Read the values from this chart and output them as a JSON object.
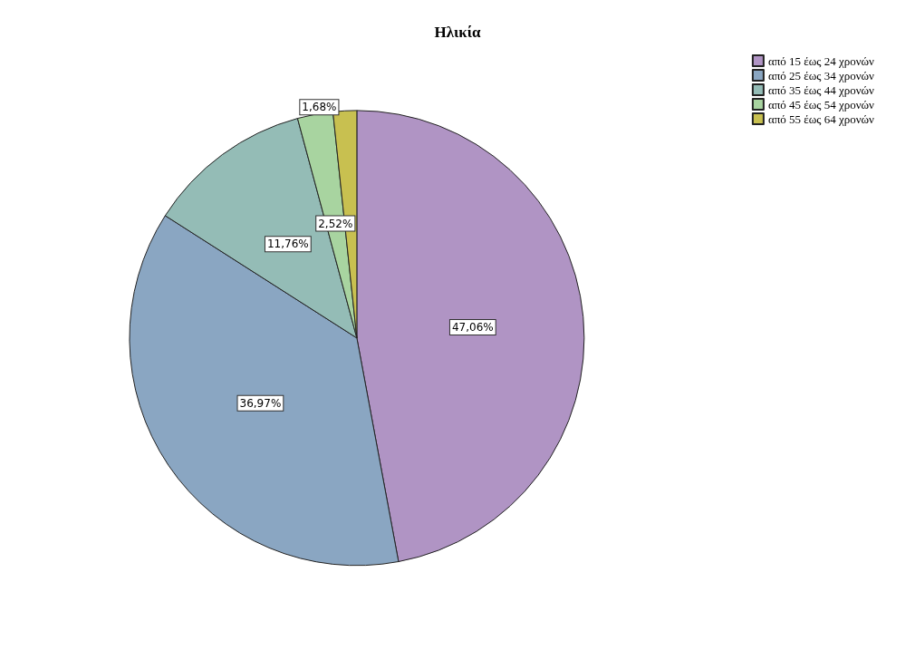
{
  "chart_data": {
    "type": "pie",
    "title": "Ηλικία",
    "categories": [
      "από 15 έως 24 χρονών",
      "από 25 έως 34 χρονών",
      "από 35 έως 44 χρονών",
      "από 45 έως 54 χρονών",
      "από 55 έως 64 χρονών"
    ],
    "values": [
      47.06,
      36.97,
      11.76,
      2.52,
      1.68
    ],
    "colors": [
      "#b094c4",
      "#8aa6c2",
      "#94bcb6",
      "#a8d4a0",
      "#c8c050"
    ],
    "value_labels": [
      "47,06%",
      "36,97%",
      "11,76%",
      "2,52%",
      "1,68%"
    ],
    "legend": "top right"
  }
}
